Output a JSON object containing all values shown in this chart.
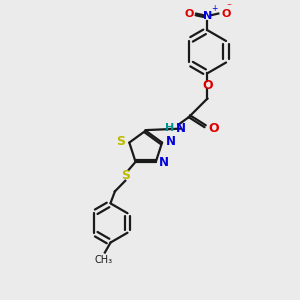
{
  "bg_color": "#ebebeb",
  "bond_color": "#1a1a1a",
  "N_color": "#0000dd",
  "O_color": "#dd0000",
  "S_color": "#bbbb00",
  "NH_color": "#009090",
  "lw": 1.6,
  "figsize": [
    3.0,
    3.0
  ],
  "dpi": 100,
  "xlim": [
    -1,
    9
  ],
  "ylim": [
    -1,
    9
  ]
}
